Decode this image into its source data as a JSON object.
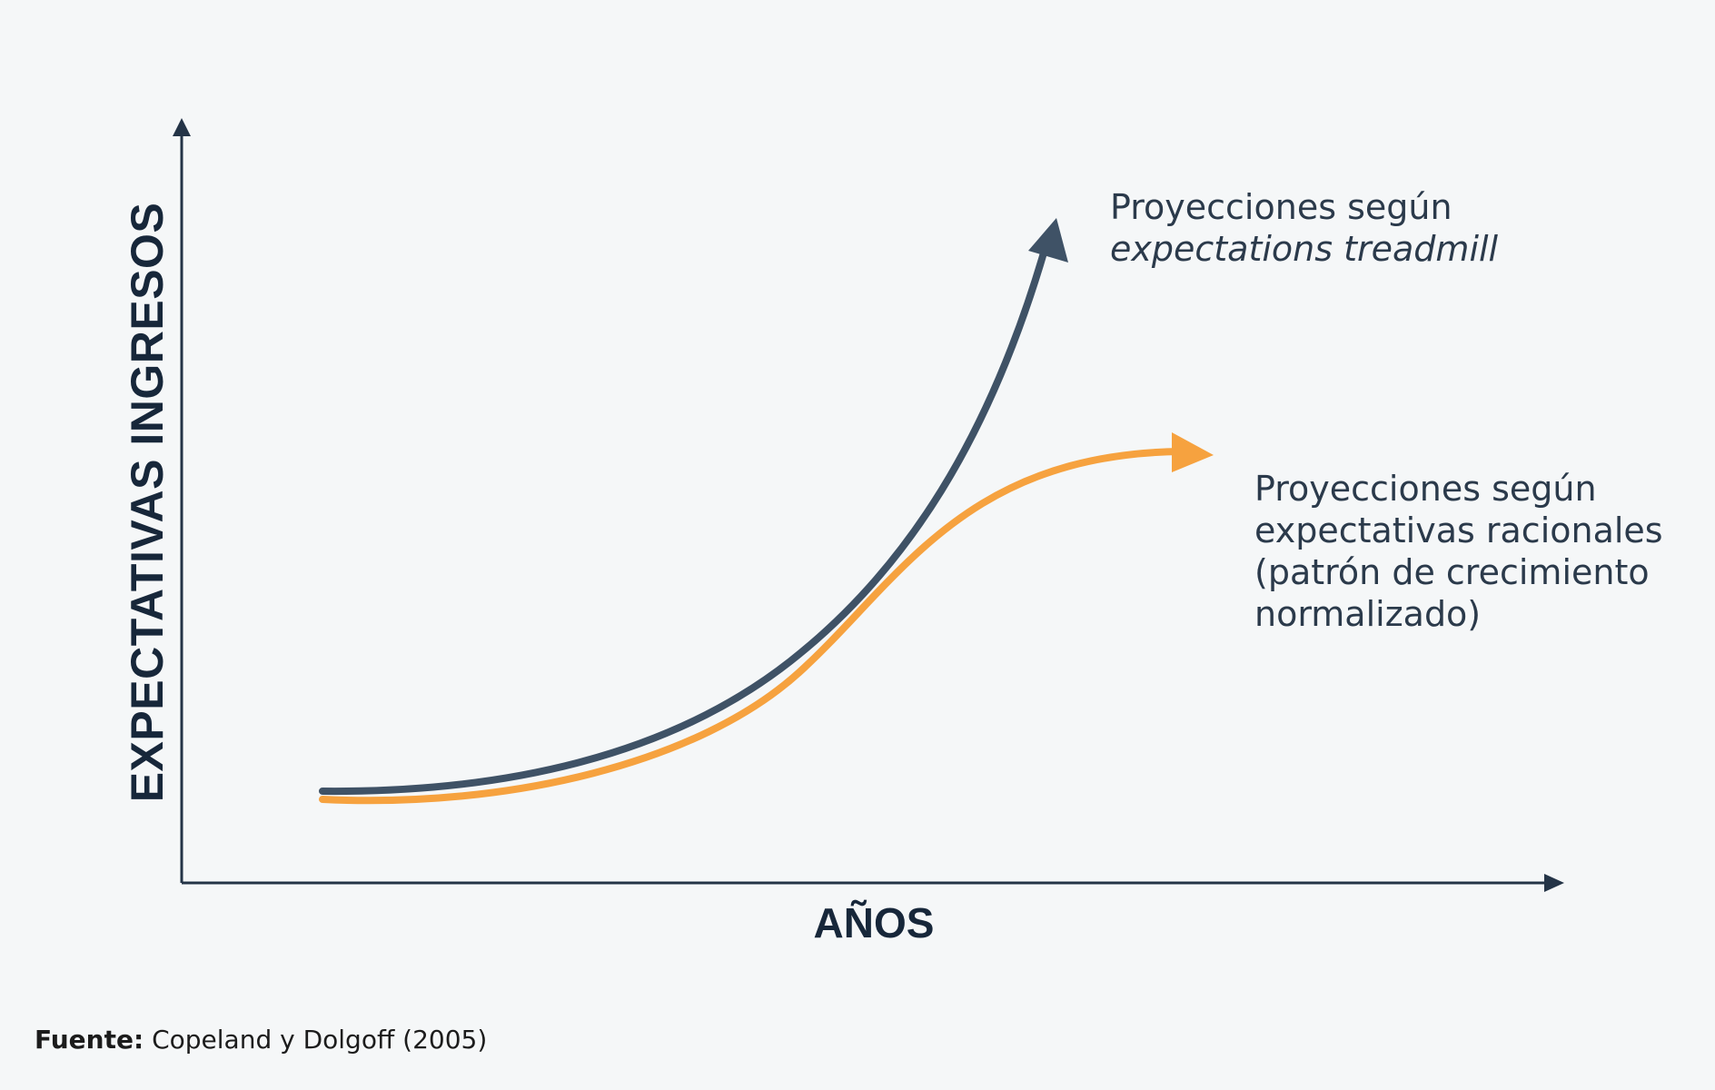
{
  "diagram": {
    "y_axis_label": "EXPECTATIVAS INGRESOS",
    "x_axis_label": "AÑOS",
    "curves": [
      {
        "label_lines": [
          "Proyecciones según",
          "expectations treadmill"
        ],
        "color": "#3f5266"
      },
      {
        "label_lines": [
          "Proyecciones según",
          "expectativas racionales",
          "(patrón de crecimiento",
          "normalizado)"
        ],
        "color": "#f6a23f"
      }
    ],
    "axis_color": "#243447",
    "background_color": "#f5f7f8"
  },
  "source": {
    "label": "Fuente:",
    "text": "Copeland y Dolgoff (2005)"
  }
}
